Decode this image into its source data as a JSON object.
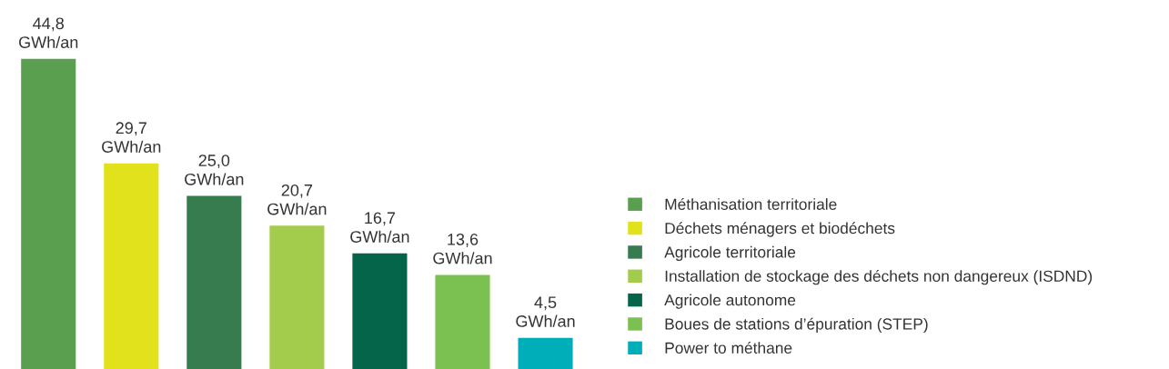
{
  "chart_data": {
    "type": "bar",
    "categories": [
      null,
      null,
      null,
      null,
      null,
      null,
      null
    ],
    "series": [
      {
        "name": "Méthanisation territoriale",
        "color": "#5a9e50",
        "values": [
          44.8,
          null,
          null,
          null,
          null,
          null,
          null
        ],
        "value_labels": [
          "44,8\nGWh/an",
          null,
          null,
          null,
          null,
          null,
          null
        ]
      },
      {
        "name": "Déchets ménagers et biodéchets",
        "color": "#e1e21b",
        "values": [
          null,
          29.7,
          null,
          null,
          null,
          null,
          null
        ],
        "value_labels": [
          null,
          "29,7\nGWh/an",
          null,
          null,
          null,
          null,
          null
        ]
      },
      {
        "name": "Agricole territoriale",
        "color": "#377c4f",
        "values": [
          null,
          null,
          25.0,
          null,
          null,
          null,
          null
        ],
        "value_labels": [
          null,
          null,
          "25,0\nGWh/an",
          null,
          null,
          null,
          null
        ]
      },
      {
        "name": "Installation de stockage des déchets non dangereux (ISDND)",
        "color": "#a4cc4c",
        "values": [
          null,
          null,
          null,
          20.7,
          null,
          null,
          null
        ],
        "value_labels": [
          null,
          null,
          null,
          "20,7\nGWh/an",
          null,
          null,
          null
        ]
      },
      {
        "name": "Agricole autonome",
        "color": "#04654b",
        "values": [
          null,
          null,
          null,
          null,
          16.7,
          null,
          null
        ],
        "value_labels": [
          null,
          null,
          null,
          null,
          "16,7\nGWh/an",
          null,
          null
        ]
      },
      {
        "name": "Boues de stations d’épuration (STEP)",
        "color": "#7bc152",
        "values": [
          null,
          null,
          null,
          null,
          null,
          13.6,
          null
        ],
        "value_labels": [
          null,
          null,
          null,
          null,
          null,
          "13,6\nGWh/an",
          null
        ]
      },
      {
        "name": "Power to méthane",
        "color": "#00aeba",
        "values": [
          null,
          null,
          null,
          null,
          null,
          null,
          4.5
        ],
        "value_labels": [
          null,
          null,
          null,
          null,
          null,
          null,
          "4,5\nGWh/an"
        ]
      }
    ],
    "stacked": true,
    "legend": "right"
  }
}
